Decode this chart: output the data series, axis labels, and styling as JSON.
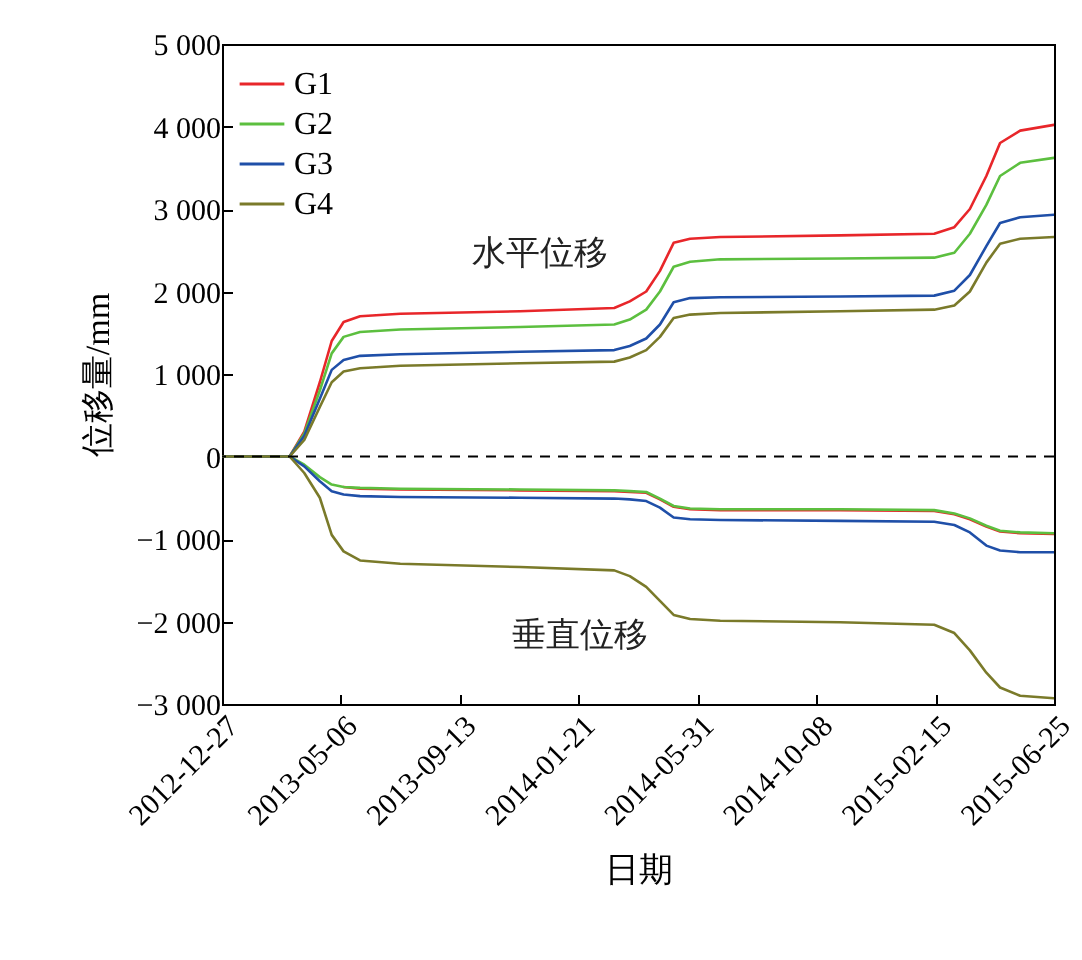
{
  "chart_data": {
    "type": "line",
    "xlabel": "日期",
    "ylabel": "位移量/mm",
    "x": [
      "2012-12-27",
      "2013-03-11",
      "2013-03-27",
      "2013-04-13",
      "2013-04-26",
      "2013-05-09",
      "2013-05-27",
      "2013-07-10",
      "2013-11-18",
      "2014-03-01",
      "2014-03-18",
      "2014-04-05",
      "2014-04-20",
      "2014-05-05",
      "2014-05-23",
      "2014-06-25",
      "2014-11-03",
      "2015-02-14",
      "2015-03-08",
      "2015-03-25",
      "2015-04-12",
      "2015-04-27",
      "2015-05-19",
      "2015-06-25"
    ],
    "series": [
      {
        "name": "G1",
        "color": "#e8262a",
        "values": [
          0,
          0,
          300,
          900,
          1400,
          1630,
          1700,
          1730,
          1760,
          1800,
          1880,
          2000,
          2250,
          2590,
          2640,
          2660,
          2680,
          2700,
          2780,
          3000,
          3400,
          3800,
          3950,
          4020
        ]
      },
      {
        "name": "G2",
        "color": "#5cbf3f",
        "values": [
          0,
          0,
          280,
          800,
          1250,
          1450,
          1510,
          1540,
          1570,
          1600,
          1660,
          1780,
          2000,
          2300,
          2360,
          2390,
          2400,
          2410,
          2470,
          2700,
          3050,
          3400,
          3560,
          3620
        ]
      },
      {
        "name": "G3",
        "color": "#1f4fa8",
        "values": [
          0,
          0,
          250,
          700,
          1050,
          1170,
          1220,
          1240,
          1270,
          1290,
          1340,
          1430,
          1600,
          1870,
          1920,
          1930,
          1940,
          1950,
          2010,
          2200,
          2550,
          2830,
          2900,
          2930
        ]
      },
      {
        "name": "G4",
        "color": "#7a7a2a",
        "values": [
          0,
          0,
          200,
          600,
          900,
          1030,
          1070,
          1100,
          1130,
          1150,
          1200,
          1290,
          1450,
          1680,
          1720,
          1740,
          1760,
          1780,
          1830,
          2000,
          2350,
          2580,
          2640,
          2660
        ]
      },
      {
        "color": "#e8262a",
        "values": [
          null,
          null,
          null,
          null,
          null,
          -370,
          -390,
          -400,
          -410,
          -420,
          -430,
          -440,
          -520,
          -610,
          -640,
          -650,
          -650,
          -660,
          -700,
          -760,
          -850,
          -910,
          -930,
          -940
        ]
      },
      {
        "color": "#5cbf3f",
        "values": [
          0,
          0,
          -100,
          -250,
          -340,
          -370,
          -380,
          -390,
          -400,
          -410,
          -420,
          -430,
          -510,
          -600,
          -630,
          -640,
          -640,
          -650,
          -690,
          -750,
          -840,
          -900,
          -920,
          -930
        ]
      },
      {
        "color": "#1f4fa8",
        "values": [
          0,
          0,
          -120,
          -300,
          -420,
          -460,
          -480,
          -490,
          -500,
          -510,
          -520,
          -540,
          -620,
          -740,
          -760,
          -770,
          -780,
          -790,
          -830,
          -920,
          -1080,
          -1140,
          -1160,
          -1160
        ]
      },
      {
        "color": "#7a7a2a",
        "values": [
          0,
          0,
          -200,
          -500,
          -950,
          -1150,
          -1260,
          -1300,
          -1340,
          -1380,
          -1450,
          -1580,
          -1750,
          -1920,
          -1970,
          -1990,
          -2010,
          -2040,
          -2140,
          -2350,
          -2620,
          -2800,
          -2900,
          -2930
        ]
      }
    ],
    "xlim": [
      "2012-12-27",
      "2015-06-25"
    ],
    "xticks": [
      "2012-12-27",
      "2013-05-06",
      "2013-09-13",
      "2014-01-21",
      "2014-05-31",
      "2014-10-08",
      "2015-02-15",
      "2015-06-25"
    ],
    "ylim": [
      -3000,
      5000
    ],
    "yticks": [
      {
        "value": -3000,
        "label": "−3 000"
      },
      {
        "value": -2000,
        "label": "−2 000"
      },
      {
        "value": -1000,
        "label": "−1 000"
      },
      0,
      {
        "value": 1000,
        "label": "1 000"
      },
      {
        "value": 2000,
        "label": "2 000"
      },
      {
        "value": 3000,
        "label": "3 000"
      },
      {
        "value": 4000,
        "label": "4 000"
      },
      {
        "value": 5000,
        "label": "5 000"
      }
    ],
    "ref_lines": [
      {
        "axis": "y",
        "value": 0,
        "color": "#000000",
        "line_style": "dashed"
      }
    ],
    "annotations": [
      "水平位移",
      "垂直位移"
    ],
    "legend": "top left",
    "grid": false,
    "marker": "none",
    "line_style": "solid"
  }
}
